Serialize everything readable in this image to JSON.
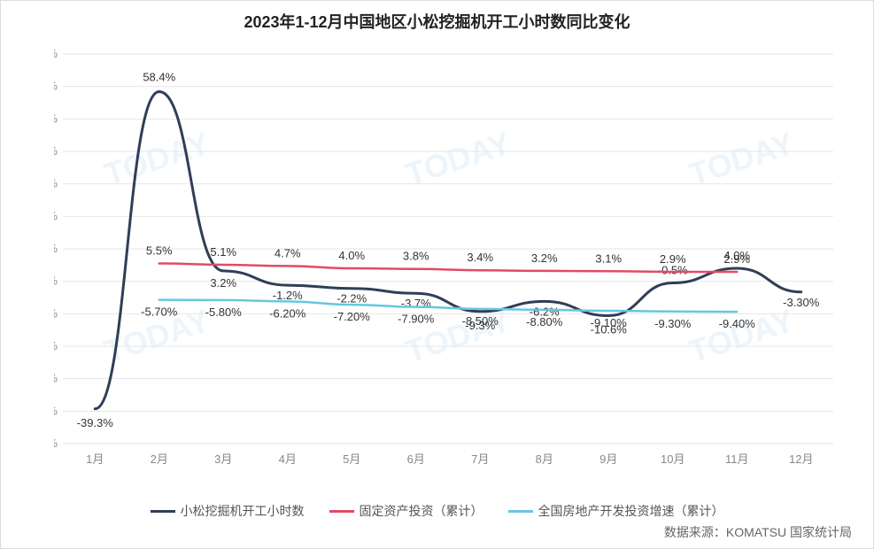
{
  "title": "2023年1-12月中国地区小松挖掘机开工小时数同比变化",
  "source": "数据来源：KOMATSU 国家统计局",
  "chart": {
    "type": "line",
    "background_color": "#ffffff",
    "grid_color": "#e6e6e6",
    "title_fontsize": 18,
    "label_fontsize": 13,
    "y": {
      "min": -50,
      "max": 70,
      "step": 10,
      "suffix": "%",
      "decimals": 1
    },
    "x_labels": [
      "1月",
      "2月",
      "3月",
      "4月",
      "5月",
      "6月",
      "7月",
      "8月",
      "9月",
      "10月",
      "11月",
      "12月"
    ],
    "series": [
      {
        "name": "小松挖掘机开工小时数",
        "color": "#2f3e57",
        "width": 3,
        "values": [
          -39.3,
          58.4,
          3.2,
          -1.2,
          -2.2,
          -3.7,
          -9.3,
          -6.2,
          -10.6,
          -0.5,
          4.0,
          -3.3
        ],
        "label_fmt": [
          "-39.3%",
          "58.4%",
          "3.2%",
          "-1.2%",
          "-2.2%",
          "-3.7%",
          "-9.3%",
          "-6.2%",
          "-10.6%",
          "-0.5%",
          "4.0%",
          "-3.30%"
        ],
        "label_dy": [
          20,
          -12,
          18,
          16,
          16,
          16,
          20,
          16,
          20,
          -10,
          -10,
          16
        ]
      },
      {
        "name": "固定资产投资（累计）",
        "color": "#e14b63",
        "width": 2.5,
        "values": [
          null,
          5.5,
          5.1,
          4.7,
          4.0,
          3.8,
          3.4,
          3.2,
          3.1,
          2.9,
          2.9,
          null
        ],
        "label_fmt": [
          null,
          "5.5%",
          "5.1%",
          "4.7%",
          "4.0%",
          "3.8%",
          "3.4%",
          "3.2%",
          "3.1%",
          "2.9%",
          "2.9%",
          null
        ],
        "label_dy": [
          0,
          -10,
          -10,
          -10,
          -10,
          -10,
          -10,
          -10,
          -10,
          -10,
          -10,
          0
        ]
      },
      {
        "name": "全国房地产开发投资增速（累计）",
        "color": "#66c7e0",
        "width": 2.5,
        "values": [
          null,
          -5.7,
          -5.8,
          -6.2,
          -7.2,
          -7.9,
          -8.5,
          -8.8,
          -9.1,
          -9.3,
          -9.4,
          null
        ],
        "label_fmt": [
          null,
          "-5.70%",
          "-5.80%",
          "-6.20%",
          "-7.20%",
          "-7.90%",
          "-8.50%",
          "-8.80%",
          "-9.10%",
          "-9.30%",
          "-9.40%",
          null
        ],
        "label_dy": [
          0,
          18,
          18,
          18,
          18,
          18,
          18,
          18,
          18,
          18,
          18,
          0
        ]
      }
    ],
    "watermark_text": "TODAY"
  },
  "legend": {
    "s1": "小松挖掘机开工小时数",
    "s2": "固定资产投资（累计）",
    "s3": "全国房地产开发投资增速（累计）"
  }
}
